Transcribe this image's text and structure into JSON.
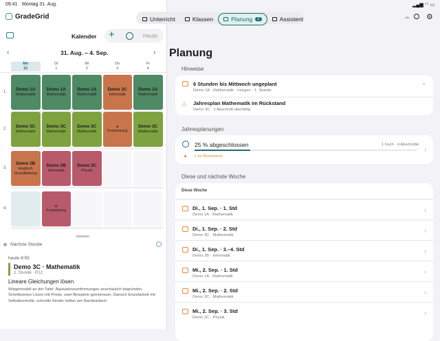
{
  "status": {
    "time": "09:41",
    "date": "Montag 31. Aug."
  },
  "app": {
    "name": "GradeGrid",
    "tabs": [
      {
        "label": "Unterricht"
      },
      {
        "label": "Klassen"
      },
      {
        "label": "Planung",
        "badge": "2"
      },
      {
        "label": "Assistent"
      }
    ]
  },
  "calendar": {
    "title": "Kalender",
    "today": "Heute",
    "range": "31. Aug. – 4. Sep.",
    "days": [
      {
        "name": "Mo",
        "num": "31"
      },
      {
        "name": "Di",
        "num": "1"
      },
      {
        "name": "Mi",
        "num": "2"
      },
      {
        "name": "Do",
        "num": "3"
      },
      {
        "name": "Fr",
        "num": "4"
      }
    ],
    "rows": [
      {
        "label": "1.",
        "cells": [
          {
            "class": "Demo 1A",
            "subject": "Mathematik",
            "color": "#4e8a63"
          },
          {
            "class": "Demo 1A",
            "subject": "Mathematik",
            "color": "#4e8a63"
          },
          {
            "class": "Demo 1A",
            "subject": "Mathematik",
            "color": "#4e8a63"
          },
          {
            "class": "Demo 3C",
            "subject": "Informatik",
            "color": "#c9754c"
          },
          {
            "class": "Demo 1A",
            "subject": "Mathematik",
            "color": "#4e8a63"
          }
        ]
      },
      {
        "label": "2.",
        "cells": [
          {
            "class": "Demo 3C",
            "subject": "Mathematik",
            "color": "#7ea23f"
          },
          {
            "class": "Demo 3C",
            "subject": "Mathematik",
            "color": "#7ea23f"
          },
          {
            "class": "Demo 3C",
            "subject": "Mathematik",
            "color": "#7ea23f"
          },
          {
            "subject": "Fortsetzung",
            "color": "#c9754c"
          },
          {
            "class": "Demo 3C",
            "subject": "Mathematik",
            "color": "#7ea23f"
          }
        ]
      },
      {
        "label": "3.",
        "cells": [
          {
            "class": "Demo 2B",
            "subject": "Englisch Grundbildung",
            "color": "#c9754c"
          },
          {
            "class": "Demo 2B",
            "subject": "Informatik",
            "color": "#b95a6c"
          },
          {
            "class": "Demo 3C",
            "subject": "Physik",
            "color": "#b95a6c"
          },
          null,
          null
        ]
      },
      {
        "label": "4.",
        "cells": [
          null,
          {
            "subject": "Fortsetzung",
            "color": "#b95a6c"
          },
          null,
          null,
          null
        ]
      }
    ]
  },
  "next": {
    "title": "Nächste Stunde",
    "when": "heute 8:55",
    "lesson": "Demo 3C · Mathematik",
    "meta": "2. Stunde · R12",
    "topic": "Lineare Gleichungen lösen",
    "notes": "Wiegemodell an der Tafel: Äquivalenzumformungen anschaulich begründen. Schrittweises Lösen mit Probe, zwei Beispiele gemeinsam. Danach Einzelarbeit mit Selbstkontrolle, schnelle Kinder helfen am Nachbartisch."
  },
  "planning": {
    "title": "Planung",
    "hints_title": "Hinweise",
    "hints": [
      {
        "title": "6 Stunden bis Mittwoch ungeplant",
        "sub": "Demo 1A · Mathematik · morgen · 1. Stunde"
      },
      {
        "title": "Jahresplan Mathematik im Rückstand",
        "sub": "Demo 3C · 1 Abschnitt überfällig"
      }
    ],
    "year_title": "Jahresplanungen",
    "progress": {
      "value": 25,
      "label": "25 % abgeschlossen"
    },
    "year_meta": "1 Fach · 4 Abschnitte",
    "year_warn": "1 im Rückstand",
    "weeks_title": "Diese und nächste Woche",
    "week_label": "Diese Woche",
    "items": [
      {
        "title": "Di., 1. Sep. · 1. Std",
        "sub": "Demo 1A · Mathematik"
      },
      {
        "title": "Di., 1. Sep. · 2. Std",
        "sub": "Demo 3C · Mathematik"
      },
      {
        "title": "Di., 1. Sep. · 3.–4. Std",
        "sub": "Demo 2B · Informatik"
      },
      {
        "title": "Mi., 2. Sep. · 1. Std",
        "sub": "Demo 1A · Mathematik"
      },
      {
        "title": "Mi., 2. Sep. · 2. Std",
        "sub": "Demo 3C · Mathematik"
      },
      {
        "title": "Mi., 2. Sep. · 3. Std",
        "sub": "Demo 3C · Physik"
      }
    ]
  }
}
